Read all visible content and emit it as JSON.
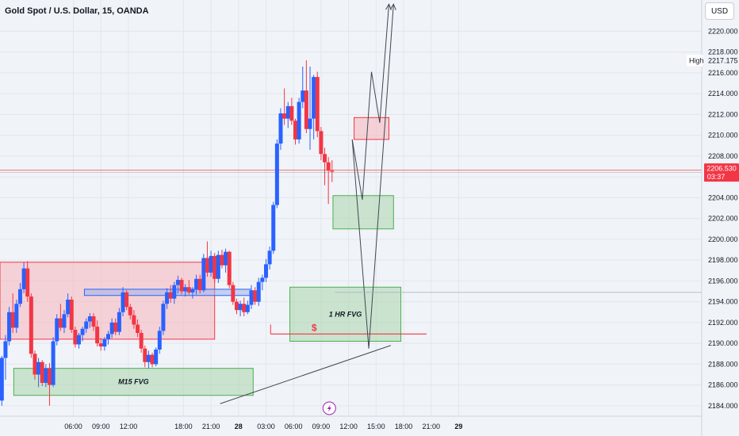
{
  "header": {
    "symbol_title": "Gold Spot / U.S. Dollar, 15, OANDA",
    "currency": "USD"
  },
  "colors": {
    "up": "#2962ff",
    "down": "#f23645",
    "red_zone": "#f7b4b9",
    "green_zone": "#a9d5ad",
    "blue_zone": "#9fb3e8"
  },
  "chart_data": {
    "type": "candlestick",
    "y_axis": {
      "range": [
        2183,
        2223
      ],
      "ticks": [
        2184,
        2186,
        2188,
        2190,
        2192,
        2194,
        2196,
        2198,
        2200,
        2202,
        2204,
        2206,
        2208,
        2210,
        2212,
        2214,
        2216,
        2218,
        2220
      ],
      "tick_labels": [
        "2184.000",
        "2186.000",
        "2188.000",
        "2190.000",
        "2192.000",
        "2194.000",
        "2196.000",
        "2198.000",
        "2200.000",
        "2202.000",
        "2204.000",
        "2206.000",
        "2208.000",
        "2210.000",
        "2212.000",
        "2214.000",
        "2216.000",
        "2218.000",
        "2220.000"
      ]
    },
    "x_axis": {
      "range_hours": [
        -2,
        74.5
      ],
      "ticks": [
        {
          "label": "06:00",
          "hour": 6,
          "bold": false
        },
        {
          "label": "09:00",
          "hour": 9,
          "bold": false
        },
        {
          "label": "12:00",
          "hour": 12,
          "bold": false
        },
        {
          "label": "18:00",
          "hour": 18,
          "bold": false
        },
        {
          "label": "21:00",
          "hour": 21,
          "bold": false
        },
        {
          "label": "28",
          "hour": 24,
          "bold": true
        },
        {
          "label": "03:00",
          "hour": 27,
          "bold": false
        },
        {
          "label": "06:00",
          "hour": 30,
          "bold": false
        },
        {
          "label": "09:00",
          "hour": 33,
          "bold": false
        },
        {
          "label": "12:00",
          "hour": 36,
          "bold": false
        },
        {
          "label": "15:00",
          "hour": 39,
          "bold": false
        },
        {
          "label": "18:00",
          "hour": 42,
          "bold": false
        },
        {
          "label": "21:00",
          "hour": 45,
          "bold": false
        },
        {
          "label": "29",
          "hour": 48,
          "bold": true
        }
      ]
    },
    "markers": {
      "high": {
        "label": "High",
        "value": "2217.175",
        "price": 2217.175
      },
      "current": {
        "value": "2206.530",
        "countdown": "03:37",
        "price": 2206.53
      }
    },
    "candles_ohlc": [
      [
        2184.5,
        2188.8,
        2184.0,
        2188.6
      ],
      [
        2188.6,
        2190.8,
        2186.5,
        2190.2
      ],
      [
        2190.2,
        2193.5,
        2189.8,
        2193.0
      ],
      [
        2193.0,
        2194.8,
        2191.0,
        2191.5
      ],
      [
        2191.5,
        2194.2,
        2191.0,
        2193.8
      ],
      [
        2193.8,
        2195.8,
        2193.5,
        2195.2
      ],
      [
        2195.2,
        2197.8,
        2194.8,
        2197.2
      ],
      [
        2197.2,
        2197.9,
        2194.0,
        2194.5
      ],
      [
        2194.5,
        2194.8,
        2188.6,
        2189.0
      ],
      [
        2189.0,
        2189.3,
        2186.5,
        2187.0
      ],
      [
        2187.0,
        2188.6,
        2185.8,
        2188.2
      ],
      [
        2188.2,
        2188.4,
        2185.9,
        2186.2
      ],
      [
        2186.2,
        2188.0,
        2185.8,
        2187.6
      ],
      [
        2187.6,
        2188.1,
        2184.0,
        2186.0
      ],
      [
        2186.0,
        2190.6,
        2185.8,
        2190.2
      ],
      [
        2190.2,
        2192.8,
        2189.8,
        2192.4
      ],
      [
        2192.4,
        2193.8,
        2191.2,
        2191.5
      ],
      [
        2191.5,
        2193.2,
        2191.0,
        2192.8
      ],
      [
        2192.8,
        2194.8,
        2192.5,
        2194.2
      ],
      [
        2194.2,
        2194.5,
        2191.0,
        2191.3
      ],
      [
        2191.3,
        2191.6,
        2189.6,
        2189.9
      ],
      [
        2189.9,
        2191.0,
        2189.5,
        2190.8
      ],
      [
        2190.8,
        2191.6,
        2190.2,
        2191.4
      ],
      [
        2191.4,
        2192.4,
        2191.0,
        2192.1
      ],
      [
        2192.1,
        2192.9,
        2191.5,
        2192.6
      ],
      [
        2192.6,
        2192.9,
        2191.2,
        2191.6
      ],
      [
        2191.6,
        2192.2,
        2189.7,
        2190.0
      ],
      [
        2190.0,
        2190.5,
        2189.3,
        2189.7
      ],
      [
        2189.7,
        2190.6,
        2189.3,
        2190.4
      ],
      [
        2190.4,
        2191.2,
        2189.9,
        2190.9
      ],
      [
        2190.9,
        2192.4,
        2190.5,
        2192.0
      ],
      [
        2192.0,
        2192.4,
        2190.8,
        2191.1
      ],
      [
        2191.1,
        2193.4,
        2190.8,
        2193.0
      ],
      [
        2193.0,
        2195.4,
        2192.6,
        2194.9
      ],
      [
        2194.9,
        2195.1,
        2193.2,
        2193.5
      ],
      [
        2193.5,
        2193.8,
        2192.3,
        2192.7
      ],
      [
        2192.7,
        2193.2,
        2191.4,
        2191.8
      ],
      [
        2191.8,
        2192.3,
        2190.6,
        2191.0
      ],
      [
        2191.0,
        2191.3,
        2189.1,
        2189.5
      ],
      [
        2189.5,
        2189.8,
        2187.7,
        2188.2
      ],
      [
        2188.2,
        2189.3,
        2187.6,
        2188.9
      ],
      [
        2188.9,
        2189.1,
        2187.7,
        2188.0
      ],
      [
        2188.0,
        2189.6,
        2187.8,
        2189.4
      ],
      [
        2189.4,
        2191.6,
        2189.0,
        2191.2
      ],
      [
        2191.2,
        2194.1,
        2190.8,
        2193.8
      ],
      [
        2193.8,
        2195.3,
        2193.3,
        2194.9
      ],
      [
        2194.9,
        2195.6,
        2193.9,
        2194.3
      ],
      [
        2194.3,
        2195.9,
        2193.8,
        2195.6
      ],
      [
        2195.6,
        2196.5,
        2194.8,
        2196.1
      ],
      [
        2196.1,
        2196.3,
        2194.7,
        2195.0
      ],
      [
        2195.0,
        2195.7,
        2194.5,
        2195.4
      ],
      [
        2195.4,
        2196.1,
        2194.7,
        2194.9
      ],
      [
        2194.9,
        2195.4,
        2194.3,
        2195.2
      ],
      [
        2195.2,
        2196.6,
        2194.7,
        2196.2
      ],
      [
        2196.2,
        2196.6,
        2194.8,
        2195.1
      ],
      [
        2195.1,
        2198.6,
        2194.9,
        2198.2
      ],
      [
        2198.2,
        2199.8,
        2196.4,
        2196.8
      ],
      [
        2196.8,
        2198.9,
        2196.4,
        2198.4
      ],
      [
        2198.4,
        2198.7,
        2195.8,
        2196.2
      ],
      [
        2196.2,
        2198.9,
        2195.8,
        2198.5
      ],
      [
        2198.5,
        2199.0,
        2197.2,
        2197.5
      ],
      [
        2197.5,
        2199.1,
        2196.8,
        2198.8
      ],
      [
        2198.8,
        2198.9,
        2195.3,
        2195.6
      ],
      [
        2195.6,
        2195.9,
        2193.7,
        2194.0
      ],
      [
        2194.0,
        2194.3,
        2192.8,
        2193.2
      ],
      [
        2193.2,
        2194.1,
        2192.6,
        2193.8
      ],
      [
        2193.8,
        2194.4,
        2192.6,
        2193.0
      ],
      [
        2193.0,
        2194.1,
        2192.8,
        2193.7
      ],
      [
        2193.7,
        2195.6,
        2193.3,
        2195.1
      ],
      [
        2195.1,
        2195.4,
        2193.7,
        2194.0
      ],
      [
        2194.0,
        2196.3,
        2193.6,
        2195.9
      ],
      [
        2195.9,
        2196.6,
        2195.1,
        2196.3
      ],
      [
        2196.3,
        2198.1,
        2195.9,
        2197.6
      ],
      [
        2197.6,
        2199.3,
        2197.1,
        2198.9
      ],
      [
        2198.9,
        2203.6,
        2198.6,
        2203.3
      ],
      [
        2203.3,
        2209.6,
        2203.0,
        2209.2
      ],
      [
        2209.2,
        2212.6,
        2208.6,
        2212.1
      ],
      [
        2212.1,
        2214.5,
        2211.0,
        2211.6
      ],
      [
        2211.6,
        2213.2,
        2210.7,
        2212.8
      ],
      [
        2212.8,
        2213.6,
        2211.0,
        2211.4
      ],
      [
        2211.4,
        2211.6,
        2209.1,
        2209.6
      ],
      [
        2209.6,
        2213.6,
        2209.2,
        2213.2
      ],
      [
        2213.2,
        2216.6,
        2212.6,
        2214.3
      ],
      [
        2214.3,
        2217.2,
        2210.2,
        2210.6
      ],
      [
        2210.6,
        2216.6,
        2208.6,
        2211.6
      ],
      [
        2211.6,
        2215.8,
        2209.6,
        2215.6
      ],
      [
        2215.6,
        2216.1,
        2209.8,
        2210.4
      ],
      [
        2210.4,
        2210.8,
        2207.6,
        2208.2
      ],
      [
        2208.2,
        2208.8,
        2205.2,
        2207.4
      ],
      [
        2207.4,
        2207.9,
        2203.4,
        2206.6
      ],
      [
        2206.6,
        2207.6,
        2205.5,
        2206.5
      ]
    ],
    "zones": [
      {
        "name": "red-range-zone",
        "kind": "red",
        "h1": -2,
        "h2": 21.4,
        "p_top": 2197.8,
        "p_bottom": 2190.4
      },
      {
        "name": "blue-resistance-zone",
        "kind": "blue",
        "h1": 7.2,
        "h2": 25.4,
        "p_top": 2195.2,
        "p_bottom": 2194.6
      },
      {
        "name": "m15-fvg-zone",
        "kind": "green",
        "h1": -0.5,
        "h2": 25.6,
        "p_top": 2187.6,
        "p_bottom": 2185.0,
        "label": "M15 FVG"
      },
      {
        "name": "1hr-fvg-zone",
        "kind": "green",
        "h1": 29.6,
        "h2": 41.7,
        "p_top": 2195.4,
        "p_bottom": 2190.2,
        "label": "1 HR FVG"
      },
      {
        "name": "upper-fvg-zone",
        "kind": "green",
        "h1": 34.3,
        "h2": 40.9,
        "p_top": 2204.2,
        "p_bottom": 2201.0
      },
      {
        "name": "supply-zone",
        "kind": "red",
        "h1": 36.6,
        "h2": 40.4,
        "p_top": 2211.7,
        "p_bottom": 2209.6
      }
    ],
    "liquidity_line": {
      "h1": 27.5,
      "h2": 44.5,
      "price": 2190.9,
      "label": "$"
    },
    "rising_trendline": [
      [
        22,
        2184.2
      ],
      [
        40.6,
        2189.8
      ]
    ],
    "projection_paths": [
      [
        [
          36.4,
          2209.6
        ],
        [
          37.5,
          2203.8
        ],
        [
          38.5,
          2216.1
        ],
        [
          39.4,
          2211.2
        ],
        [
          40.4,
          2222.6
        ]
      ],
      [
        [
          36.4,
          2209.6
        ],
        [
          38.2,
          2189.5
        ],
        [
          40.9,
          2222.6
        ]
      ]
    ]
  }
}
